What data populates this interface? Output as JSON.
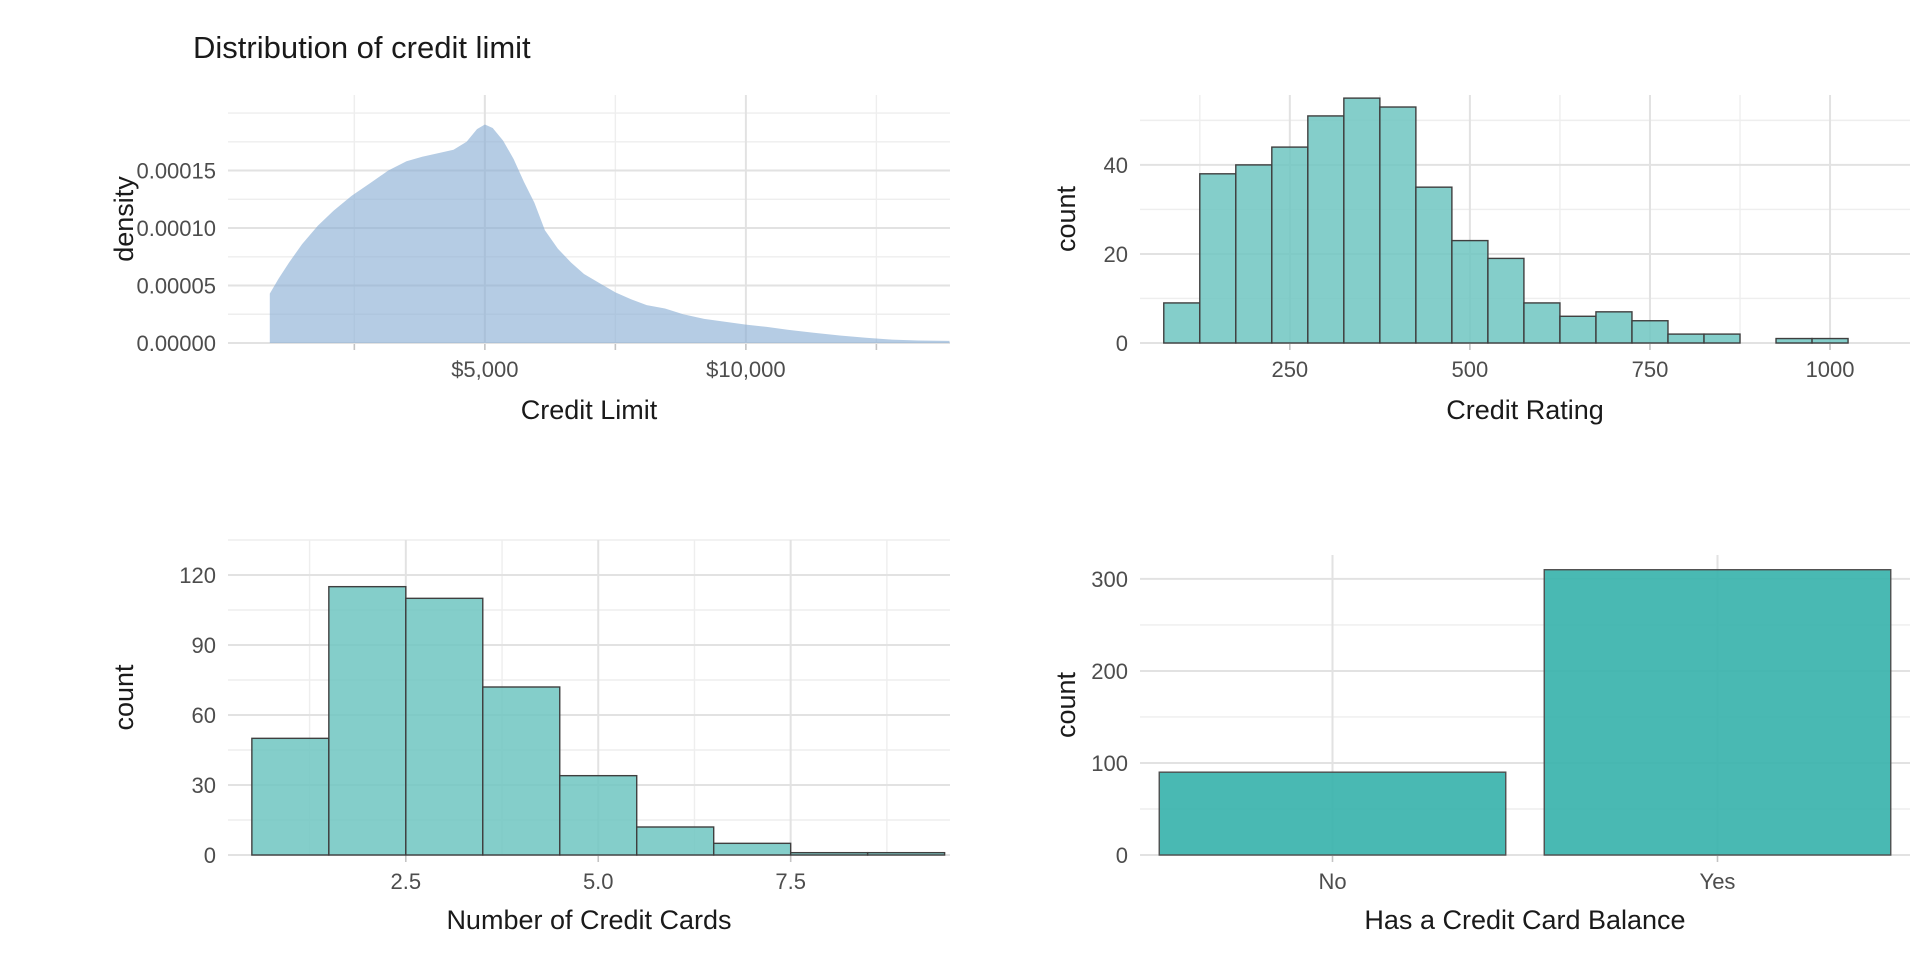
{
  "page": {
    "background": "#ffffff",
    "grid_major_color": "#e2e2e2",
    "grid_minor_color": "#eeeeee",
    "tick_color": "#c4c4c4",
    "tick_label_color": "#4d4d4d",
    "text_color": "#1a1a1a"
  },
  "chart_data": [
    {
      "id": "credit-limit-density",
      "type": "area",
      "title": "Distribution of credit limit",
      "xlabel": "Credit Limit",
      "ylabel": "density",
      "fill": "#88add3",
      "fill_opacity": 0.62,
      "grid": true,
      "legend": "none",
      "xlim": [
        80,
        13910
      ],
      "ylim": [
        0,
        0.0002157
      ],
      "x_major_ticks": [
        {
          "v": 5000,
          "label": "$5,000"
        },
        {
          "v": 10000,
          "label": "$10,000"
        }
      ],
      "x_minor_ticks": [
        2500,
        7500,
        12500
      ],
      "x_axis_tick_marks": [
        2500,
        5000,
        7500,
        10000,
        12500
      ],
      "y_major_ticks": [
        {
          "v": 0,
          "label": "0.00000"
        },
        {
          "v": 5e-05,
          "label": "0.00005"
        },
        {
          "v": 0.0001,
          "label": "0.00010"
        },
        {
          "v": 0.00015,
          "label": "0.00015"
        }
      ],
      "y_minor_ticks": [
        2.5e-05,
        7.5e-05,
        0.000125,
        0.000175,
        0.0002
      ],
      "points": [
        [
          880,
          4.3e-05
        ],
        [
          1050,
          5.6e-05
        ],
        [
          1250,
          7e-05
        ],
        [
          1500,
          8.6e-05
        ],
        [
          1800,
          0.000102
        ],
        [
          2100,
          0.000115
        ],
        [
          2450,
          0.000128
        ],
        [
          2800,
          0.000139
        ],
        [
          3150,
          0.00015
        ],
        [
          3500,
          0.000158
        ],
        [
          3800,
          0.000162
        ],
        [
          4100,
          0.000165
        ],
        [
          4400,
          0.000168
        ],
        [
          4650,
          0.000175
        ],
        [
          4850,
          0.000186
        ],
        [
          5000,
          0.00019
        ],
        [
          5150,
          0.000187
        ],
        [
          5350,
          0.000176
        ],
        [
          5550,
          0.00016
        ],
        [
          5750,
          0.00014
        ],
        [
          5950,
          0.000122
        ],
        [
          6150,
          9.8e-05
        ],
        [
          6400,
          8.2e-05
        ],
        [
          6650,
          7e-05
        ],
        [
          6900,
          6e-05
        ],
        [
          7200,
          5.2e-05
        ],
        [
          7500,
          4.4e-05
        ],
        [
          7800,
          3.8e-05
        ],
        [
          8100,
          3.3e-05
        ],
        [
          8450,
          3e-05
        ],
        [
          8800,
          2.5e-05
        ],
        [
          9200,
          2.1e-05
        ],
        [
          9600,
          1.85e-05
        ],
        [
          10000,
          1.6e-05
        ],
        [
          10400,
          1.4e-05
        ],
        [
          10800,
          1.15e-05
        ],
        [
          11300,
          9e-06
        ],
        [
          11800,
          6.5e-06
        ],
        [
          12300,
          4.5e-06
        ],
        [
          12800,
          3e-06
        ],
        [
          13300,
          2.2e-06
        ],
        [
          13900,
          1.8e-06
        ]
      ]
    },
    {
      "id": "credit-rating-histogram",
      "type": "bar",
      "title": "",
      "xlabel": "Credit Rating",
      "ylabel": "count",
      "fill": "#6ec6c1",
      "fill_opacity": 0.85,
      "stroke": "#3f3f3f",
      "grid": true,
      "legend": "none",
      "bin_start": 75,
      "bin_width": 50,
      "values": [
        9,
        38,
        40,
        44,
        51,
        55,
        53,
        35,
        23,
        19,
        9,
        6,
        7,
        5,
        2,
        2,
        0,
        1,
        1
      ],
      "xlim": [
        42,
        1111
      ],
      "ylim": [
        0,
        55.7
      ],
      "x_major_ticks": [
        {
          "v": 250,
          "label": "250"
        },
        {
          "v": 500,
          "label": "500"
        },
        {
          "v": 750,
          "label": "750"
        },
        {
          "v": 1000,
          "label": "1000"
        }
      ],
      "x_minor_ticks": [
        125,
        375,
        625,
        875
      ],
      "x_axis_tick_marks": [
        250,
        500,
        750,
        1000
      ],
      "y_major_ticks": [
        {
          "v": 0,
          "label": "0"
        },
        {
          "v": 20,
          "label": "20"
        },
        {
          "v": 40,
          "label": "40"
        }
      ],
      "y_minor_ticks": [
        10,
        30,
        50
      ]
    },
    {
      "id": "credit-cards-histogram",
      "type": "bar",
      "title": "",
      "xlabel": "Number of Credit Cards",
      "ylabel": "count",
      "fill": "#6ec6c1",
      "fill_opacity": 0.85,
      "stroke": "#3f3f3f",
      "grid": true,
      "legend": "none",
      "bin_start": 0.5,
      "bin_width": 1,
      "values": [
        50,
        115,
        110,
        72,
        34,
        12,
        5,
        1,
        1
      ],
      "xlim": [
        0.19,
        9.57
      ],
      "ylim": [
        0,
        135
      ],
      "x_major_ticks": [
        {
          "v": 2.5,
          "label": "2.5"
        },
        {
          "v": 5.0,
          "label": "5.0"
        },
        {
          "v": 7.5,
          "label": "7.5"
        }
      ],
      "x_minor_ticks": [
        1.25,
        3.75,
        6.25,
        8.75
      ],
      "x_axis_tick_marks": [
        2.5,
        5.0,
        7.5
      ],
      "y_major_ticks": [
        {
          "v": 0,
          "label": "0"
        },
        {
          "v": 30,
          "label": "30"
        },
        {
          "v": 60,
          "label": "60"
        },
        {
          "v": 90,
          "label": "90"
        },
        {
          "v": 120,
          "label": "120"
        }
      ],
      "y_minor_ticks": [
        15,
        45,
        75,
        105,
        135
      ]
    },
    {
      "id": "credit-balance-bar",
      "type": "bar",
      "title": "",
      "xlabel": "Has a Credit Card Balance",
      "ylabel": "count",
      "fill": "#39b3ad",
      "fill_opacity": 0.92,
      "stroke": "#4f4f4f",
      "grid": true,
      "legend": "none",
      "categories": [
        "No",
        "Yes"
      ],
      "values": [
        90,
        310
      ],
      "ylim": [
        0,
        326
      ],
      "y_major_ticks": [
        {
          "v": 0,
          "label": "0"
        },
        {
          "v": 100,
          "label": "100"
        },
        {
          "v": 200,
          "label": "200"
        },
        {
          "v": 300,
          "label": "300"
        }
      ],
      "y_minor_ticks": [
        50,
        150,
        250
      ]
    }
  ]
}
